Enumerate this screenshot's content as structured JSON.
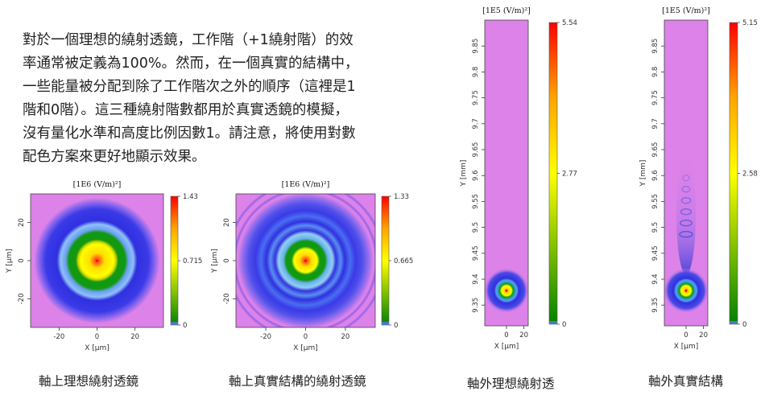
{
  "intro": {
    "lines": [
      "對於一個理想的繞射透鏡，工作階（+1繞射階）的效",
      "率通常被定義為100%。然而，在一個真實的結構中，",
      "一些能量被分配到除了工作階次之外的順序（這裡是1",
      "階和0階）。這三種繞射階數都用於真實透鏡的模擬，",
      "沒有量化水準和高度比例因數1。請注意，將使用對數",
      "配色方案來更好地顯示效果。"
    ]
  },
  "captions": [
    "軸上理想繞射透鏡",
    "軸上真實結構的繞射透鏡",
    "軸外理想繞射透",
    "軸外真實結構"
  ],
  "colors": {
    "background_field": "#dc82e8",
    "ring_blue": "#3030e0",
    "ring_green": "#119911",
    "peak": "#ff0000"
  },
  "chart_data": [
    {
      "type": "heatmap",
      "title": "",
      "unit_label": "[1E6 (V/m)²]",
      "xlabel": "X [µm]",
      "ylabel": "Y [µm]",
      "xlim": [
        -35,
        35
      ],
      "ylim": [
        -35,
        35
      ],
      "xticks": [
        -20,
        0,
        20
      ],
      "yticks": [
        -20,
        0,
        20
      ],
      "xtick_labels": [
        "-20",
        "0",
        "20"
      ],
      "ytick_labels": [
        "-20",
        "0",
        "20"
      ],
      "colorbar": {
        "min": 0,
        "max": 1.43,
        "tick_labels": [
          "1.43",
          "0.715",
          "0"
        ]
      },
      "focus": {
        "x": 0,
        "y": 0
      },
      "side_rings": false
    },
    {
      "type": "heatmap",
      "title": "",
      "unit_label": "[1E6 (V/m)²]",
      "xlabel": "X [µm]",
      "ylabel": "Y [µm]",
      "xlim": [
        -35,
        35
      ],
      "ylim": [
        -35,
        35
      ],
      "xticks": [
        -20,
        0,
        20
      ],
      "yticks": [
        -20,
        0,
        20
      ],
      "xtick_labels": [
        "-20",
        "0",
        "20"
      ],
      "ytick_labels": [
        "-20",
        "0",
        "20"
      ],
      "colorbar": {
        "min": 0,
        "max": 1.33,
        "tick_labels": [
          "1.33",
          "0.665",
          "0"
        ]
      },
      "focus": {
        "x": 0,
        "y": 0
      },
      "side_rings": true
    },
    {
      "type": "heatmap",
      "title": "",
      "unit_label": "[1E5 (V/m)²]",
      "xlabel": "X [µm]",
      "ylabel": "Y [mm]",
      "xlim": [
        -25,
        25
      ],
      "ylim": [
        9.31,
        9.9
      ],
      "xticks": [
        0,
        20
      ],
      "yticks": [
        9.35,
        9.4,
        9.45,
        9.5,
        9.55,
        9.6,
        9.65,
        9.7,
        9.75,
        9.8,
        9.85
      ],
      "xtick_labels": [
        "0",
        "20"
      ],
      "ytick_labels": [
        "9.35",
        "9.4",
        "9.45",
        "9.5",
        "9.55",
        "9.6",
        "9.65",
        "9.7",
        "9.75",
        "9.8",
        "9.85"
      ],
      "colorbar": {
        "min": 0,
        "max": 5.54,
        "tick_labels": [
          "5.54",
          "2.77",
          "0"
        ]
      },
      "focus": {
        "x": 0,
        "y": 9.378
      },
      "ghost_orders": false
    },
    {
      "type": "heatmap",
      "title": "",
      "unit_label": "[1E5 (V/m)²]",
      "xlabel": "X [µm]",
      "ylabel": "Y [mm]",
      "xlim": [
        -25,
        25
      ],
      "ylim": [
        9.31,
        9.9
      ],
      "xticks": [
        0,
        20
      ],
      "yticks": [
        9.35,
        9.4,
        9.45,
        9.5,
        9.55,
        9.6,
        9.65,
        9.7,
        9.75,
        9.8,
        9.85
      ],
      "xtick_labels": [
        "0",
        "20"
      ],
      "ytick_labels": [
        "9.35",
        "9.4",
        "9.45",
        "9.5",
        "9.55",
        "9.6",
        "9.65",
        "9.7",
        "9.75",
        "9.8",
        "9.85"
      ],
      "colorbar": {
        "min": 0,
        "max": 5.15,
        "tick_labels": [
          "5.15",
          "2.58",
          "0"
        ]
      },
      "focus": {
        "x": 0,
        "y": 9.378
      },
      "ghost_orders": true
    }
  ]
}
